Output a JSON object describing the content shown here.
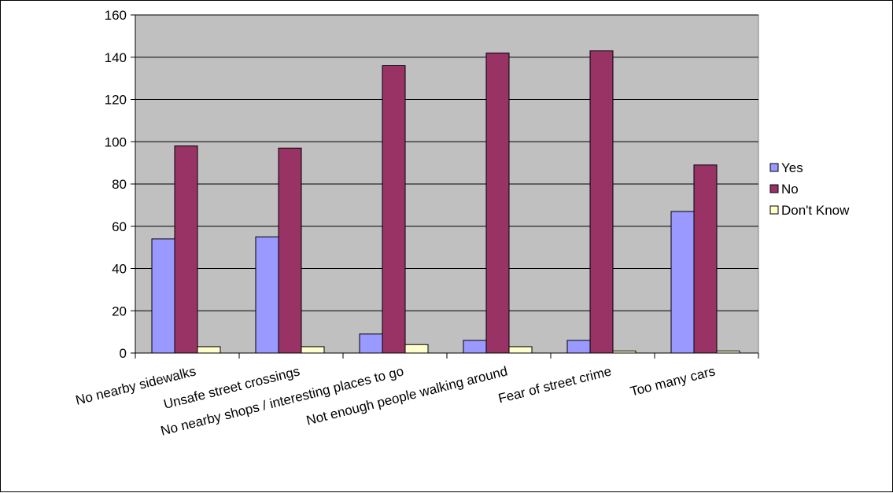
{
  "chart_data": {
    "type": "bar",
    "title": "",
    "xlabel": "",
    "ylabel": "",
    "ylim": [
      0,
      160
    ],
    "yticks": [
      0,
      20,
      40,
      60,
      80,
      100,
      120,
      140,
      160
    ],
    "categories": [
      "No nearby sidewalks",
      "Unsafe street crossings",
      "No nearby shops / interesting places to go",
      "Not enough people walking around",
      "Fear of street crime",
      "Too many cars"
    ],
    "series": [
      {
        "name": "Yes",
        "values": [
          54,
          55,
          9,
          6,
          6,
          67
        ]
      },
      {
        "name": "No",
        "values": [
          98,
          97,
          136,
          142,
          143,
          89
        ]
      },
      {
        "name": "Don't Know",
        "values": [
          3,
          3,
          4,
          3,
          1,
          1
        ]
      }
    ],
    "colors": [
      "#9999ff",
      "#993366",
      "#ffffcc"
    ],
    "plot_background": "#c0c0c0",
    "grid": true,
    "legend_position": "right"
  }
}
